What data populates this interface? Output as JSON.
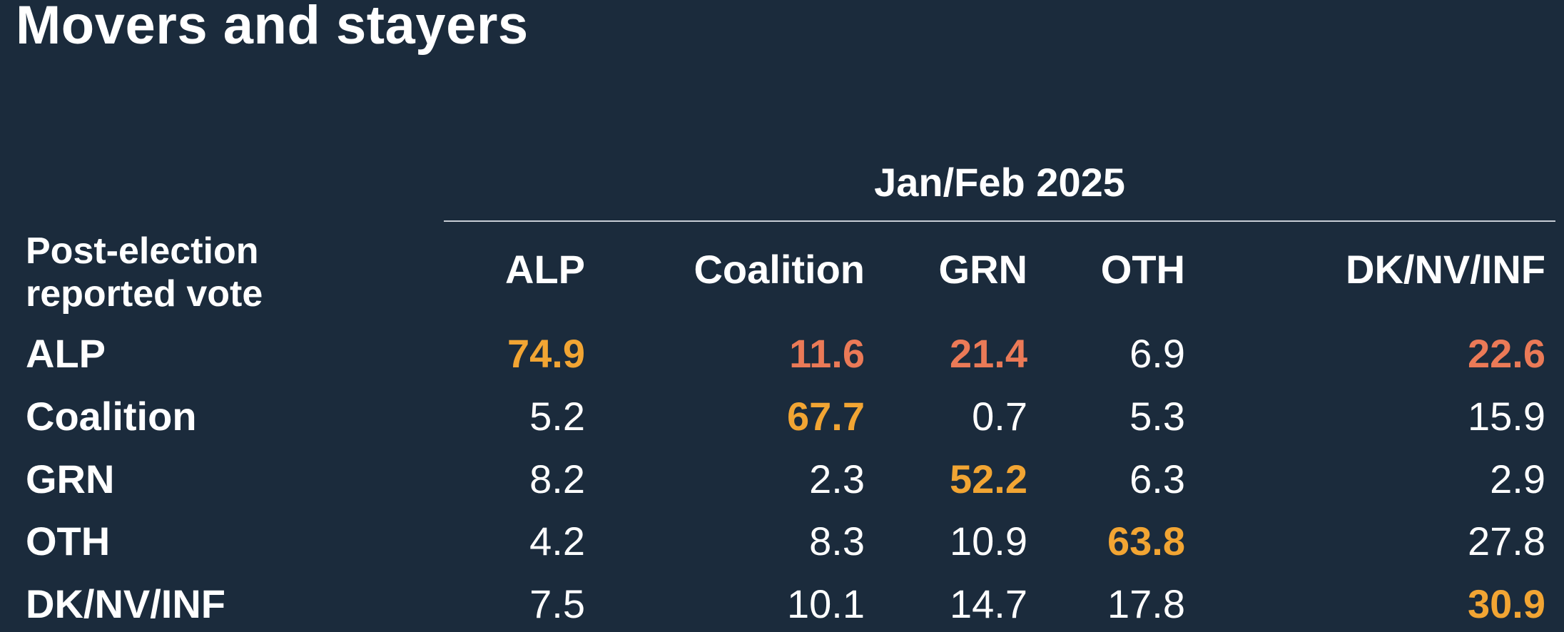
{
  "title": "Movers and stayers",
  "colors": {
    "background": "#1b2b3c",
    "text": "#ffffff",
    "stayer_highlight": "#f2a533",
    "mover_highlight": "#eb7a57",
    "rule": "#c8ced6"
  },
  "chart_data": {
    "type": "table",
    "title": "Movers and stayers",
    "column_group_label": "Jan/Feb 2025",
    "row_header_label": "Post-election reported vote",
    "columns": [
      "ALP",
      "Coalition",
      "GRN",
      "OTH",
      "DK/NV/INF"
    ],
    "rows": [
      {
        "label": "ALP",
        "values": [
          "74.9",
          "11.6",
          "21.4",
          "6.9",
          "22.6"
        ],
        "highlight": [
          "stayer",
          "mover",
          "mover",
          "none",
          "mover"
        ]
      },
      {
        "label": "Coalition",
        "values": [
          "5.2",
          "67.7",
          "0.7",
          "5.3",
          "15.9"
        ],
        "highlight": [
          "none",
          "stayer",
          "none",
          "none",
          "none"
        ]
      },
      {
        "label": "GRN",
        "values": [
          "8.2",
          "2.3",
          "52.2",
          "6.3",
          "2.9"
        ],
        "highlight": [
          "none",
          "none",
          "stayer",
          "none",
          "none"
        ]
      },
      {
        "label": "OTH",
        "values": [
          "4.2",
          "8.3",
          "10.9",
          "63.8",
          "27.8"
        ],
        "highlight": [
          "none",
          "none",
          "none",
          "stayer",
          "none"
        ]
      },
      {
        "label": "DK/NV/INF",
        "values": [
          "7.5",
          "10.1",
          "14.7",
          "17.8",
          "30.9"
        ],
        "highlight": [
          "none",
          "none",
          "none",
          "none",
          "stayer"
        ]
      }
    ]
  }
}
